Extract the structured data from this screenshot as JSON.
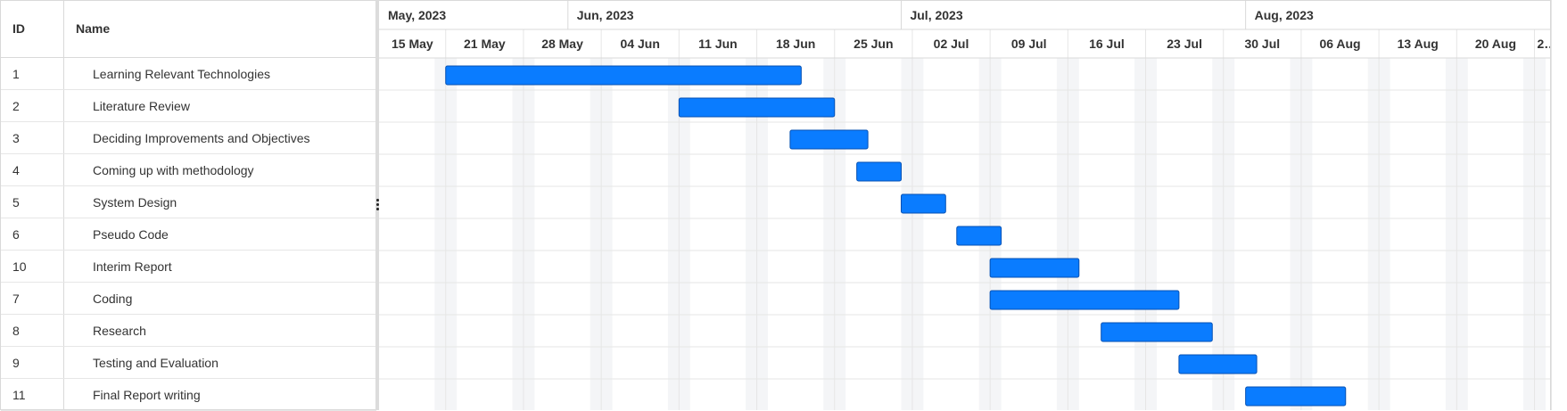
{
  "grid": {
    "columns": {
      "id": "ID",
      "name": "Name"
    },
    "rows": [
      {
        "id": "1",
        "name": "Learning Relevant Technologies"
      },
      {
        "id": "2",
        "name": "Literature Review"
      },
      {
        "id": "3",
        "name": "Deciding Improvements and Objectives"
      },
      {
        "id": "4",
        "name": "Coming up with methodology"
      },
      {
        "id": "5",
        "name": "System Design"
      },
      {
        "id": "6",
        "name": "Pseudo Code"
      },
      {
        "id": "10",
        "name": "Interim Report"
      },
      {
        "id": "7",
        "name": "Coding"
      },
      {
        "id": "8",
        "name": "Research"
      },
      {
        "id": "9",
        "name": "Testing and Evaluation"
      },
      {
        "id": "11",
        "name": "Final Report writing"
      }
    ]
  },
  "timeline": {
    "months": [
      "May, 2023",
      "Jun, 2023",
      "Jul, 2023",
      "Aug, 2023"
    ],
    "weeks": [
      "15 May",
      "21 May",
      "28 May",
      "04 Jun",
      "11 Jun",
      "18 Jun",
      "25 Jun",
      "02 Jul",
      "09 Jul",
      "16 Jul",
      "23 Jul",
      "30 Jul",
      "06 Aug",
      "13 Aug",
      "20 Aug",
      "2…"
    ]
  },
  "tasks": [
    {
      "id": "1",
      "start": "2023-05-21",
      "end": "2023-06-22"
    },
    {
      "id": "2",
      "start": "2023-06-11",
      "end": "2023-06-25"
    },
    {
      "id": "3",
      "start": "2023-06-21",
      "end": "2023-06-28"
    },
    {
      "id": "4",
      "start": "2023-06-27",
      "end": "2023-07-01"
    },
    {
      "id": "5",
      "start": "2023-07-01",
      "end": "2023-07-05"
    },
    {
      "id": "6",
      "start": "2023-07-06",
      "end": "2023-07-10"
    },
    {
      "id": "10",
      "start": "2023-07-09",
      "end": "2023-07-17"
    },
    {
      "id": "7",
      "start": "2023-07-09",
      "end": "2023-07-26"
    },
    {
      "id": "8",
      "start": "2023-07-19",
      "end": "2023-07-29"
    },
    {
      "id": "9",
      "start": "2023-07-26",
      "end": "2023-08-02"
    },
    {
      "id": "11",
      "start": "2023-08-01",
      "end": "2023-08-10"
    }
  ],
  "colors": {
    "bar_fill": "#0a7cff",
    "bar_stroke": "#0550b3",
    "weekend": "#f4f5f7",
    "grid_line": "#e6e6e6",
    "header_border": "#d9d9d9"
  }
}
